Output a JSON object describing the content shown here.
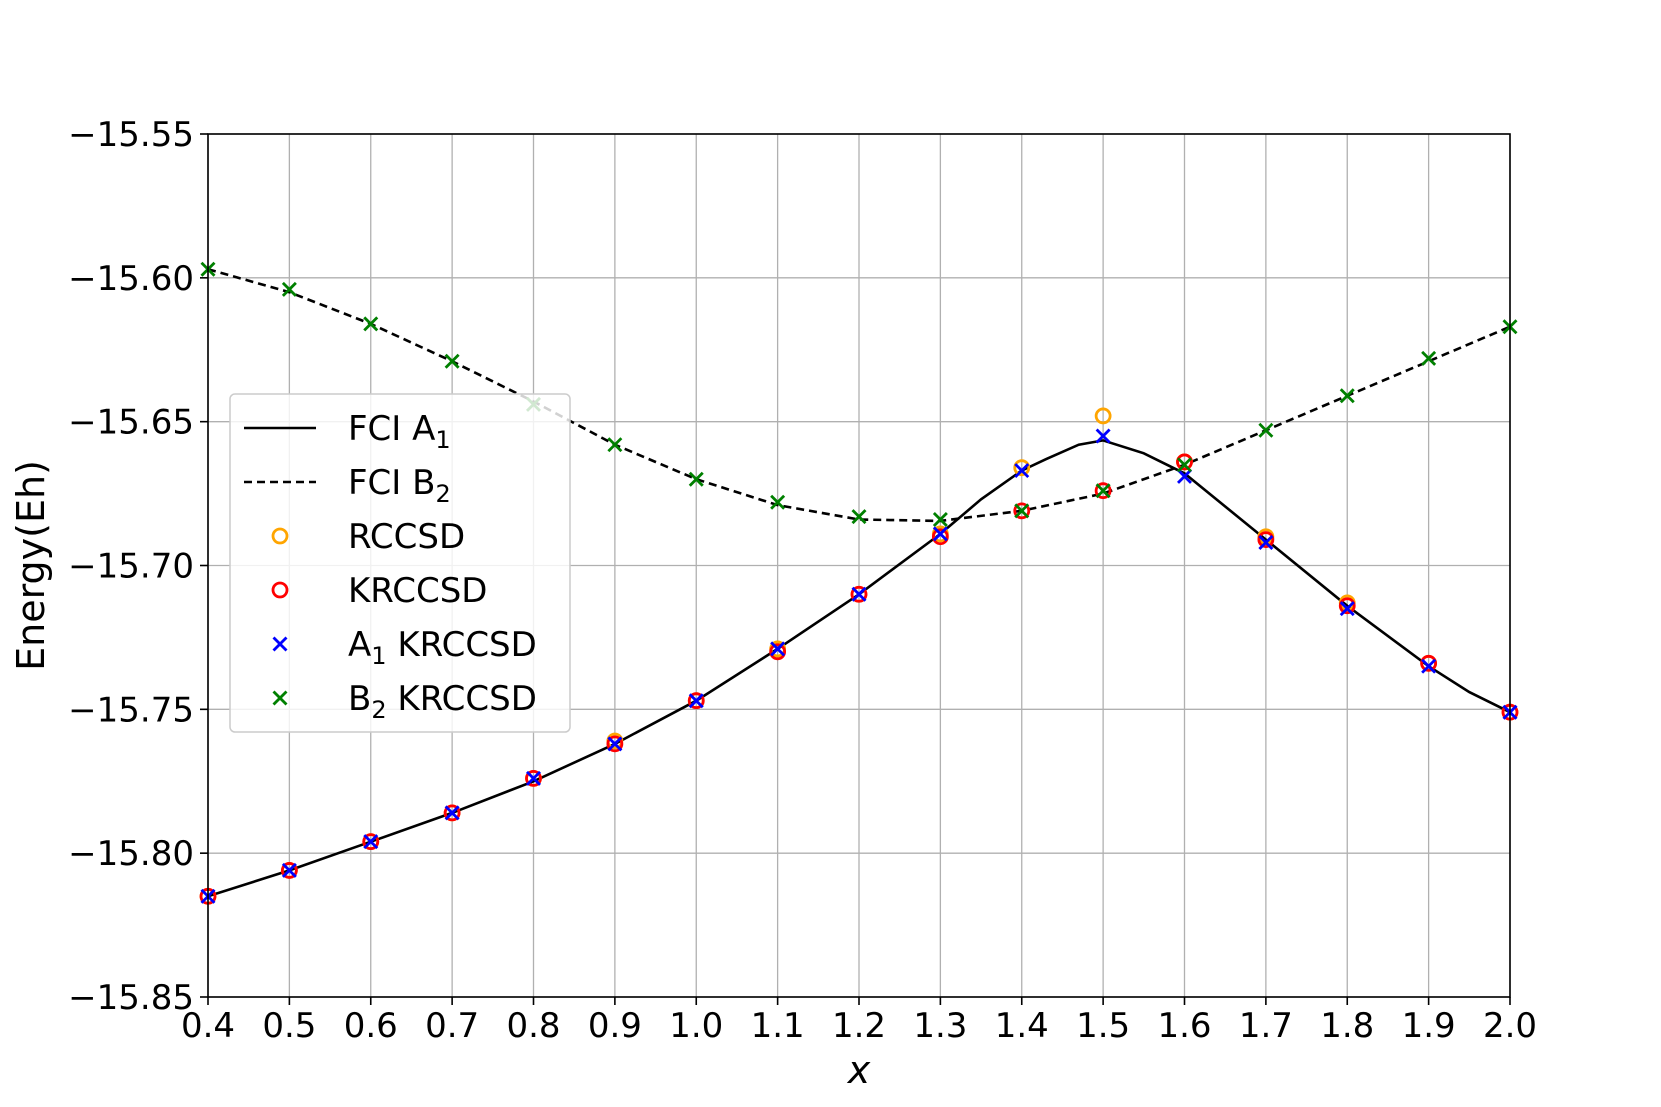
{
  "chart_data": {
    "type": "line",
    "xlabel": "x",
    "ylabel": "Energy(Eh)",
    "xlim": [
      0.4,
      2.0
    ],
    "ylim": [
      -15.85,
      -15.55
    ],
    "grid": true,
    "x_ticks": [
      "0.4",
      "0.5",
      "0.6",
      "0.7",
      "0.8",
      "0.9",
      "1.0",
      "1.1",
      "1.2",
      "1.3",
      "1.4",
      "1.5",
      "1.6",
      "1.7",
      "1.8",
      "1.9",
      "2.0"
    ],
    "y_ticks": [
      "−15.55",
      "−15.60",
      "−15.65",
      "−15.70",
      "−15.75",
      "−15.80",
      "−15.85"
    ],
    "legend_placement": "center-left",
    "colors": {
      "fci_a1": "#000000",
      "fci_b2": "#000000",
      "rccsd": "#ffa500",
      "krccsd": "#ff0000",
      "a1_krccsd": "#0000ff",
      "b2_krccsd": "#008000",
      "grid": "#b0b0b0"
    },
    "series": [
      {
        "name": "FCI A",
        "subscript": "1",
        "style": "solid-line",
        "x": [
          0.4,
          0.5,
          0.6,
          0.7,
          0.8,
          0.9,
          1.0,
          1.1,
          1.2,
          1.3,
          1.35,
          1.4,
          1.43,
          1.47,
          1.5,
          1.55,
          1.6,
          1.7,
          1.8,
          1.9,
          1.95,
          2.0
        ],
        "y": [
          -15.815,
          -15.806,
          -15.796,
          -15.786,
          -15.775,
          -15.762,
          -15.747,
          -15.729,
          -15.71,
          -15.689,
          -15.677,
          -15.667,
          -15.663,
          -15.658,
          -15.6565,
          -15.661,
          -15.668,
          -15.691,
          -15.714,
          -15.735,
          -15.744,
          -15.751
        ]
      },
      {
        "name": "FCI B",
        "subscript": "2",
        "style": "dashed-line",
        "x": [
          0.4,
          0.5,
          0.6,
          0.7,
          0.8,
          0.9,
          1.0,
          1.1,
          1.2,
          1.3,
          1.4,
          1.5,
          1.6,
          1.7,
          1.8,
          1.9,
          2.0
        ],
        "y": [
          -15.597,
          -15.605,
          -15.616,
          -15.629,
          -15.643,
          -15.658,
          -15.67,
          -15.679,
          -15.684,
          -15.6845,
          -15.681,
          -15.675,
          -15.665,
          -15.653,
          -15.641,
          -15.629,
          -15.617
        ]
      },
      {
        "name": "RCCSD",
        "style": "circle",
        "x": [
          0.4,
          0.5,
          0.6,
          0.7,
          0.8,
          0.9,
          1.0,
          1.1,
          1.2,
          1.3,
          1.4,
          1.5,
          1.6,
          1.7,
          1.8,
          1.9,
          2.0
        ],
        "y": [
          -15.815,
          -15.806,
          -15.796,
          -15.786,
          -15.774,
          -15.761,
          -15.747,
          -15.729,
          -15.71,
          -15.689,
          -15.666,
          -15.648,
          -15.664,
          -15.69,
          -15.713,
          -15.734,
          -15.751
        ]
      },
      {
        "name": "KRCCSD",
        "style": "circle",
        "x": [
          0.4,
          0.5,
          0.6,
          0.7,
          0.8,
          0.9,
          1.0,
          1.1,
          1.2,
          1.3,
          1.4,
          1.5,
          1.6,
          1.7,
          1.8,
          1.9,
          2.0
        ],
        "y": [
          -15.815,
          -15.806,
          -15.796,
          -15.786,
          -15.774,
          -15.762,
          -15.747,
          -15.73,
          -15.71,
          -15.69,
          -15.681,
          -15.674,
          -15.664,
          -15.691,
          -15.714,
          -15.734,
          -15.751
        ]
      },
      {
        "name": "A",
        "subscript": "1",
        "name_suffix": " KRCCSD",
        "style": "x",
        "x": [
          0.4,
          0.5,
          0.6,
          0.7,
          0.8,
          0.9,
          1.0,
          1.1,
          1.2,
          1.3,
          1.4,
          1.5,
          1.6,
          1.7,
          1.8,
          1.9,
          2.0
        ],
        "y": [
          -15.815,
          -15.806,
          -15.796,
          -15.786,
          -15.774,
          -15.762,
          -15.747,
          -15.729,
          -15.71,
          -15.689,
          -15.667,
          -15.655,
          -15.669,
          -15.692,
          -15.715,
          -15.735,
          -15.751
        ]
      },
      {
        "name": "B",
        "subscript": "2",
        "name_suffix": " KRCCSD",
        "style": "x",
        "x": [
          0.4,
          0.5,
          0.6,
          0.7,
          0.8,
          0.9,
          1.0,
          1.1,
          1.2,
          1.3,
          1.4,
          1.5,
          1.6,
          1.7,
          1.8,
          1.9,
          2.0
        ],
        "y": [
          -15.597,
          -15.604,
          -15.616,
          -15.629,
          -15.644,
          -15.658,
          -15.67,
          -15.678,
          -15.683,
          -15.684,
          -15.681,
          -15.674,
          -15.665,
          -15.653,
          -15.641,
          -15.628,
          -15.617
        ]
      }
    ]
  }
}
